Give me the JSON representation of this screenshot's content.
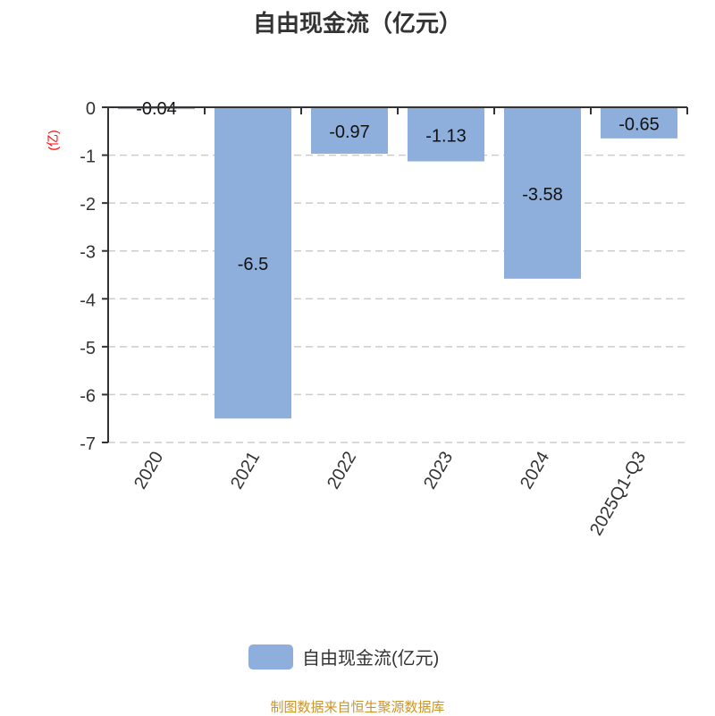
{
  "chart_data": {
    "type": "bar",
    "title": "自由现金流（亿元）",
    "ylabel": "(亿)",
    "categories": [
      "2020",
      "2021",
      "2022",
      "2023",
      "2024",
      "2025Q1-Q3"
    ],
    "values": [
      -0.04,
      -6.5,
      -0.97,
      -1.13,
      -3.58,
      -0.65
    ],
    "data_labels": [
      "-0.04",
      "-6.5",
      "-0.97",
      "-1.13",
      "-3.58",
      "-0.65"
    ],
    "ylim": [
      -7,
      0
    ],
    "yticks": [
      "0",
      "-1",
      "-2",
      "-3",
      "-4",
      "-5",
      "-6",
      "-7"
    ],
    "grid": true,
    "legend": {
      "label": "自由现金流(亿元)",
      "position": "bottom"
    },
    "color": "#8eaedb",
    "ylabel_color": "#ff0000"
  },
  "source": "制图数据来自恒生聚源数据库"
}
